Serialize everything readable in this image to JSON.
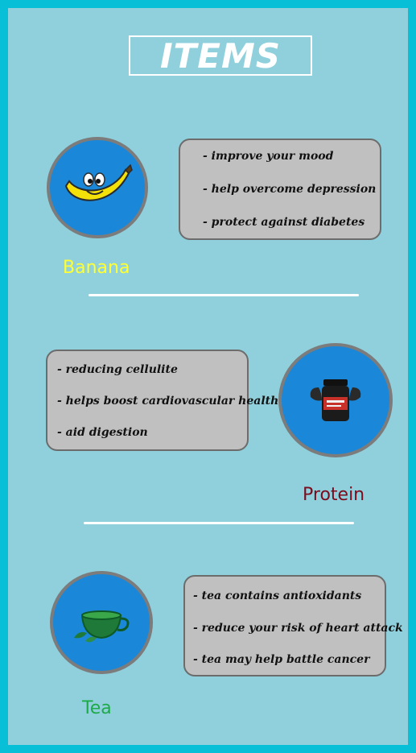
{
  "title": "ITEMS",
  "colors": {
    "frame": "#08bfd8",
    "background": "#8fd0dc",
    "circle": "#1a87d9",
    "box": "#c0c0c0",
    "banana_label": "#ffff33",
    "protein_label": "#7a0c1e",
    "tea_label": "#1faa4a"
  },
  "items": [
    {
      "name": "Banana",
      "icon": "banana-icon",
      "benefits": [
        "- improve your mood",
        "- help overcome depression",
        "- protect against diabetes"
      ]
    },
    {
      "name": "Protein",
      "icon": "protein-jar-icon",
      "benefits": [
        "- reducing cellulite",
        "- helps boost cardiovascular health",
        "- aid digestion"
      ]
    },
    {
      "name": "Tea",
      "icon": "tea-cup-icon",
      "benefits": [
        "- tea contains antioxidants",
        "- reduce your risk of heart attack",
        "- tea may help battle cancer"
      ]
    }
  ]
}
